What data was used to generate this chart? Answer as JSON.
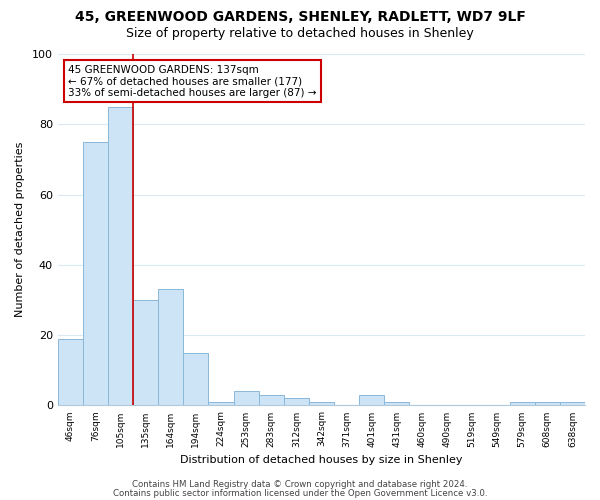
{
  "title": "45, GREENWOOD GARDENS, SHENLEY, RADLETT, WD7 9LF",
  "subtitle": "Size of property relative to detached houses in Shenley",
  "xlabel": "Distribution of detached houses by size in Shenley",
  "ylabel": "Number of detached properties",
  "bar_color": "#cce4f5",
  "bar_edge_color": "#8ab8d8",
  "vline_color": "#cc0000",
  "categories": [
    "46sqm",
    "76sqm",
    "105sqm",
    "135sqm",
    "164sqm",
    "194sqm",
    "224sqm",
    "253sqm",
    "283sqm",
    "312sqm",
    "342sqm",
    "371sqm",
    "401sqm",
    "431sqm",
    "460sqm",
    "490sqm",
    "519sqm",
    "549sqm",
    "579sqm",
    "608sqm",
    "638sqm"
  ],
  "values": [
    19,
    75,
    85,
    30,
    33,
    15,
    1,
    4,
    3,
    2,
    1,
    0,
    3,
    1,
    0,
    0,
    0,
    0,
    1,
    1,
    1
  ],
  "ylim": [
    0,
    100
  ],
  "yticks": [
    0,
    20,
    40,
    60,
    80,
    100
  ],
  "annotation_title": "45 GREENWOOD GARDENS: 137sqm",
  "annotation_line1": "← 67% of detached houses are smaller (177)",
  "annotation_line2": "33% of semi-detached houses are larger (87) →",
  "annotation_box_color": "#ffffff",
  "annotation_box_edge": "#cc0000",
  "footer_line1": "Contains HM Land Registry data © Crown copyright and database right 2024.",
  "footer_line2": "Contains public sector information licensed under the Open Government Licence v3.0.",
  "background_color": "#ffffff",
  "grid_color": "#daeaf5",
  "vline_bar_index": 2
}
